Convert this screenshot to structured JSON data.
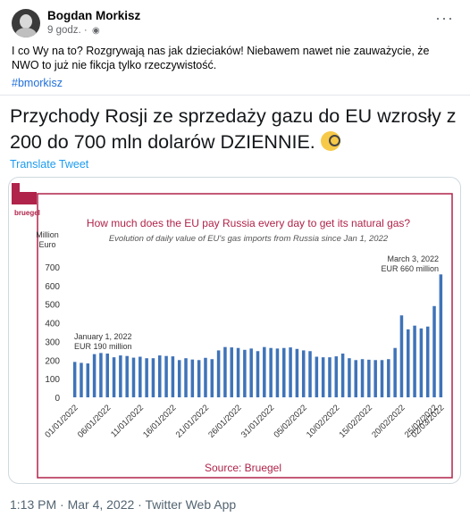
{
  "post": {
    "author": "Bogdan Morkisz",
    "time": "9 godz.",
    "globe_icon": "globe-icon",
    "text": "I co Wy na to? Rozgrywają nas jak dzieciaków! Niebawem nawet nie zauważycie, że NWO to już nie fikcja tylko rzeczywistość.",
    "hashtag": "#bmorkisz"
  },
  "tweet": {
    "text": "Przychody Rosji ze sprzedaży gazu do EU wzrosły z 200 do 700 mln dolarów DZIENNIE.",
    "translate": "Translate Tweet",
    "footer": "1:13 PM · Mar 4, 2022 · Twitter Web App"
  },
  "colors": {
    "bar": "#3f73b8",
    "title": "#b0234a",
    "frame": "#b0234a",
    "text_blue": "#1d9bf0"
  },
  "chart_data": {
    "type": "bar",
    "logo": "bruegel",
    "title": "How much does the EU pay Russia every day to get its natural gas?",
    "subtitle": "Evolution of daily value of EU's gas imports from Russia since Jan 1, 2022",
    "ylabel_line1": "Million",
    "ylabel_line2": "Euro",
    "ylim": [
      0,
      700
    ],
    "yticks": [
      "700",
      "600",
      "500",
      "400",
      "300",
      "200",
      "100",
      "0"
    ],
    "xtick_labels": [
      "01/01/2022",
      "06/01/2022",
      "11/01/2022",
      "16/01/2022",
      "21/01/2022",
      "26/01/2022",
      "31/01/2022",
      "05/02/2022",
      "10/02/2022",
      "15/02/2022",
      "20/02/2022",
      "25/02/2022",
      "02/03/2022"
    ],
    "annotation_start": {
      "line1": "January 1, 2022",
      "line2": "EUR 190 million"
    },
    "annotation_end": {
      "line1": "March 3, 2022",
      "line2": "EUR 660 million"
    },
    "source": "Source: Bruegel",
    "values": [
      190,
      185,
      182,
      232,
      238,
      235,
      215,
      225,
      222,
      213,
      218,
      210,
      210,
      225,
      222,
      220,
      200,
      210,
      203,
      200,
      212,
      205,
      252,
      270,
      268,
      265,
      255,
      262,
      248,
      270,
      265,
      262,
      265,
      268,
      260,
      252,
      248,
      218,
      215,
      215,
      220,
      235,
      210,
      200,
      205,
      202,
      200,
      200,
      205,
      265,
      440,
      365,
      385,
      370,
      380,
      490,
      660
    ]
  }
}
